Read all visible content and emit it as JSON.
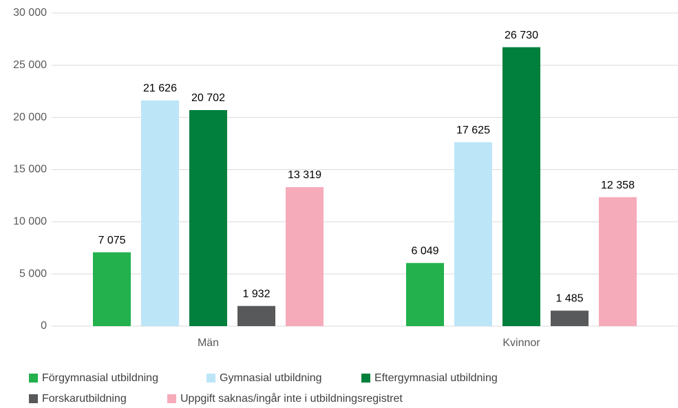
{
  "chart_data": {
    "type": "bar",
    "categories": [
      "Män",
      "Kvinnor"
    ],
    "series": [
      {
        "name": "Förgymnasial utbildning",
        "color": "#22b14c",
        "values": [
          7075,
          6049
        ],
        "value_labels": [
          "7 075",
          "6 049"
        ]
      },
      {
        "name": "Gymnasial utbildning",
        "color": "#bde5f8",
        "values": [
          21626,
          17625
        ],
        "value_labels": [
          "21 626",
          "17 625"
        ]
      },
      {
        "name": "Eftergymnasial utbildning",
        "color": "#007f3d",
        "values": [
          20702,
          26730
        ],
        "value_labels": [
          "20 702",
          "26 730"
        ]
      },
      {
        "name": "Forskarutbildning",
        "color": "#58595b",
        "values": [
          1932,
          1485
        ],
        "value_labels": [
          "1 932",
          "1 485"
        ]
      },
      {
        "name": "Uppgift saknas/ingår inte i utbildningsregistret",
        "color": "#f6abbb",
        "values": [
          13319,
          12358
        ],
        "value_labels": [
          "13 319",
          "12 358"
        ]
      }
    ],
    "ylim": [
      0,
      30000
    ],
    "yticks": [
      0,
      {
        "value": 5000,
        "label": "5 000"
      },
      {
        "value": 10000,
        "label": "10 000"
      },
      {
        "value": 15000,
        "label": "15 000"
      },
      {
        "value": 20000,
        "label": "20 000"
      },
      {
        "value": 25000,
        "label": "25 000"
      },
      {
        "value": 30000,
        "label": "30 000"
      }
    ],
    "grid": true,
    "legend": "bottom"
  }
}
